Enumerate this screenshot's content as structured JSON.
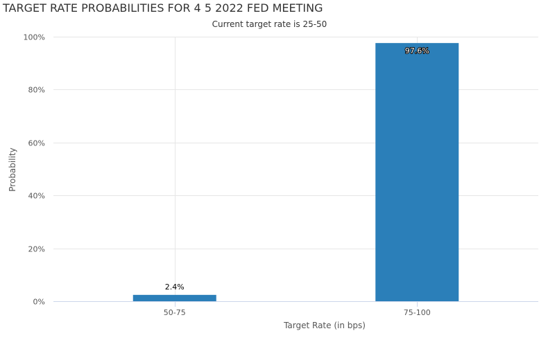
{
  "chart_data": {
    "type": "bar",
    "title": "TARGET RATE PROBABILITIES FOR 4 5 2022 FED MEETING",
    "subtitle": "Current target rate is 25-50",
    "xlabel": "Target Rate (in bps)",
    "ylabel": "Probability",
    "categories": [
      "50-75",
      "75-100"
    ],
    "values": [
      2.4,
      97.6
    ],
    "data_labels": [
      "2.4%",
      "97.6%"
    ],
    "ylim": [
      0,
      100
    ],
    "yticks": [
      0,
      20,
      40,
      60,
      80,
      100
    ],
    "ytick_labels": [
      "0%",
      "20%",
      "40%",
      "60%",
      "80%",
      "100%"
    ],
    "grid": true,
    "bar_color": "#2b7fb9"
  }
}
